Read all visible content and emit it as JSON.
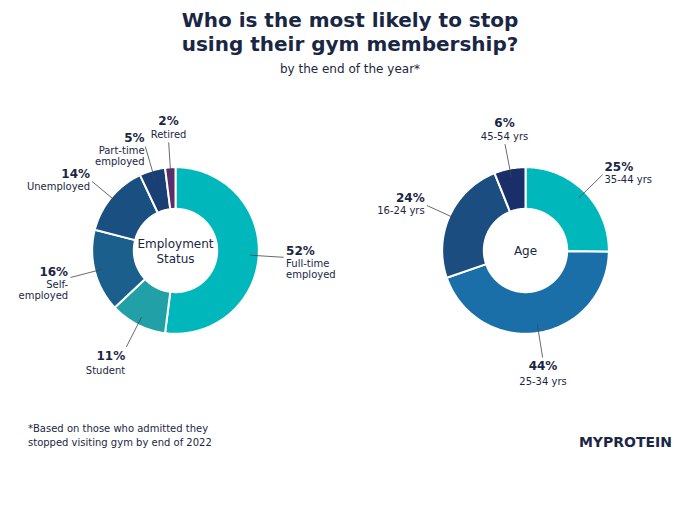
{
  "title": "Who is the most likely to stop\nusing their gym membership?",
  "subtitle": "by the end of the year*",
  "annotations": [
    "*Based on those who admitted they\nstopped visiting gym by end of 2022",
    "MYPROTEIN"
  ],
  "chart_data": [
    {
      "type": "pie",
      "title": "Employment\nStatus",
      "categories": [
        "Full-time\nemployed",
        "Student",
        "Self-\nemployed",
        "Unemployed",
        "Part-time\nemployed",
        "Retired"
      ],
      "values": [
        52,
        11,
        16,
        14,
        5,
        2
      ],
      "value_labels": [
        "52%",
        "11%",
        "16%",
        "14%",
        "5%",
        "2%"
      ],
      "colors": [
        "#00b8bc",
        "#22a0a8",
        "#1b5f8c",
        "#1a4f82",
        "#1a3f75",
        "#5a2d6b"
      ],
      "data_labels": true
    },
    {
      "type": "pie",
      "title": "Age",
      "categories": [
        "35-44 yrs",
        "25-34 yrs",
        "16-24 yrs",
        "45-54 yrs"
      ],
      "values": [
        25,
        44,
        24,
        6
      ],
      "value_labels": [
        "25%",
        "44%",
        "24%",
        "6%"
      ],
      "colors": [
        "#00b8bc",
        "#1a6fa8",
        "#1b4d80",
        "#1a2f6a"
      ],
      "data_labels": true
    }
  ]
}
